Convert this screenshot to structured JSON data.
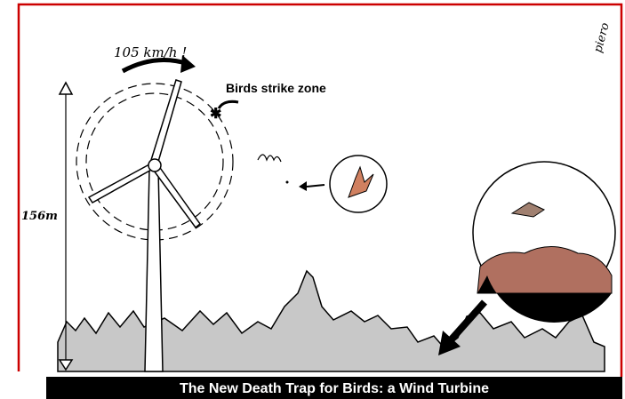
{
  "illustration": {
    "speed_label": "105 km/h !",
    "zone_label": "Birds strike zone",
    "height_label": "156m",
    "signature": "piero",
    "caption": "The New Death Trap for Birds:  a Wind Turbine"
  }
}
